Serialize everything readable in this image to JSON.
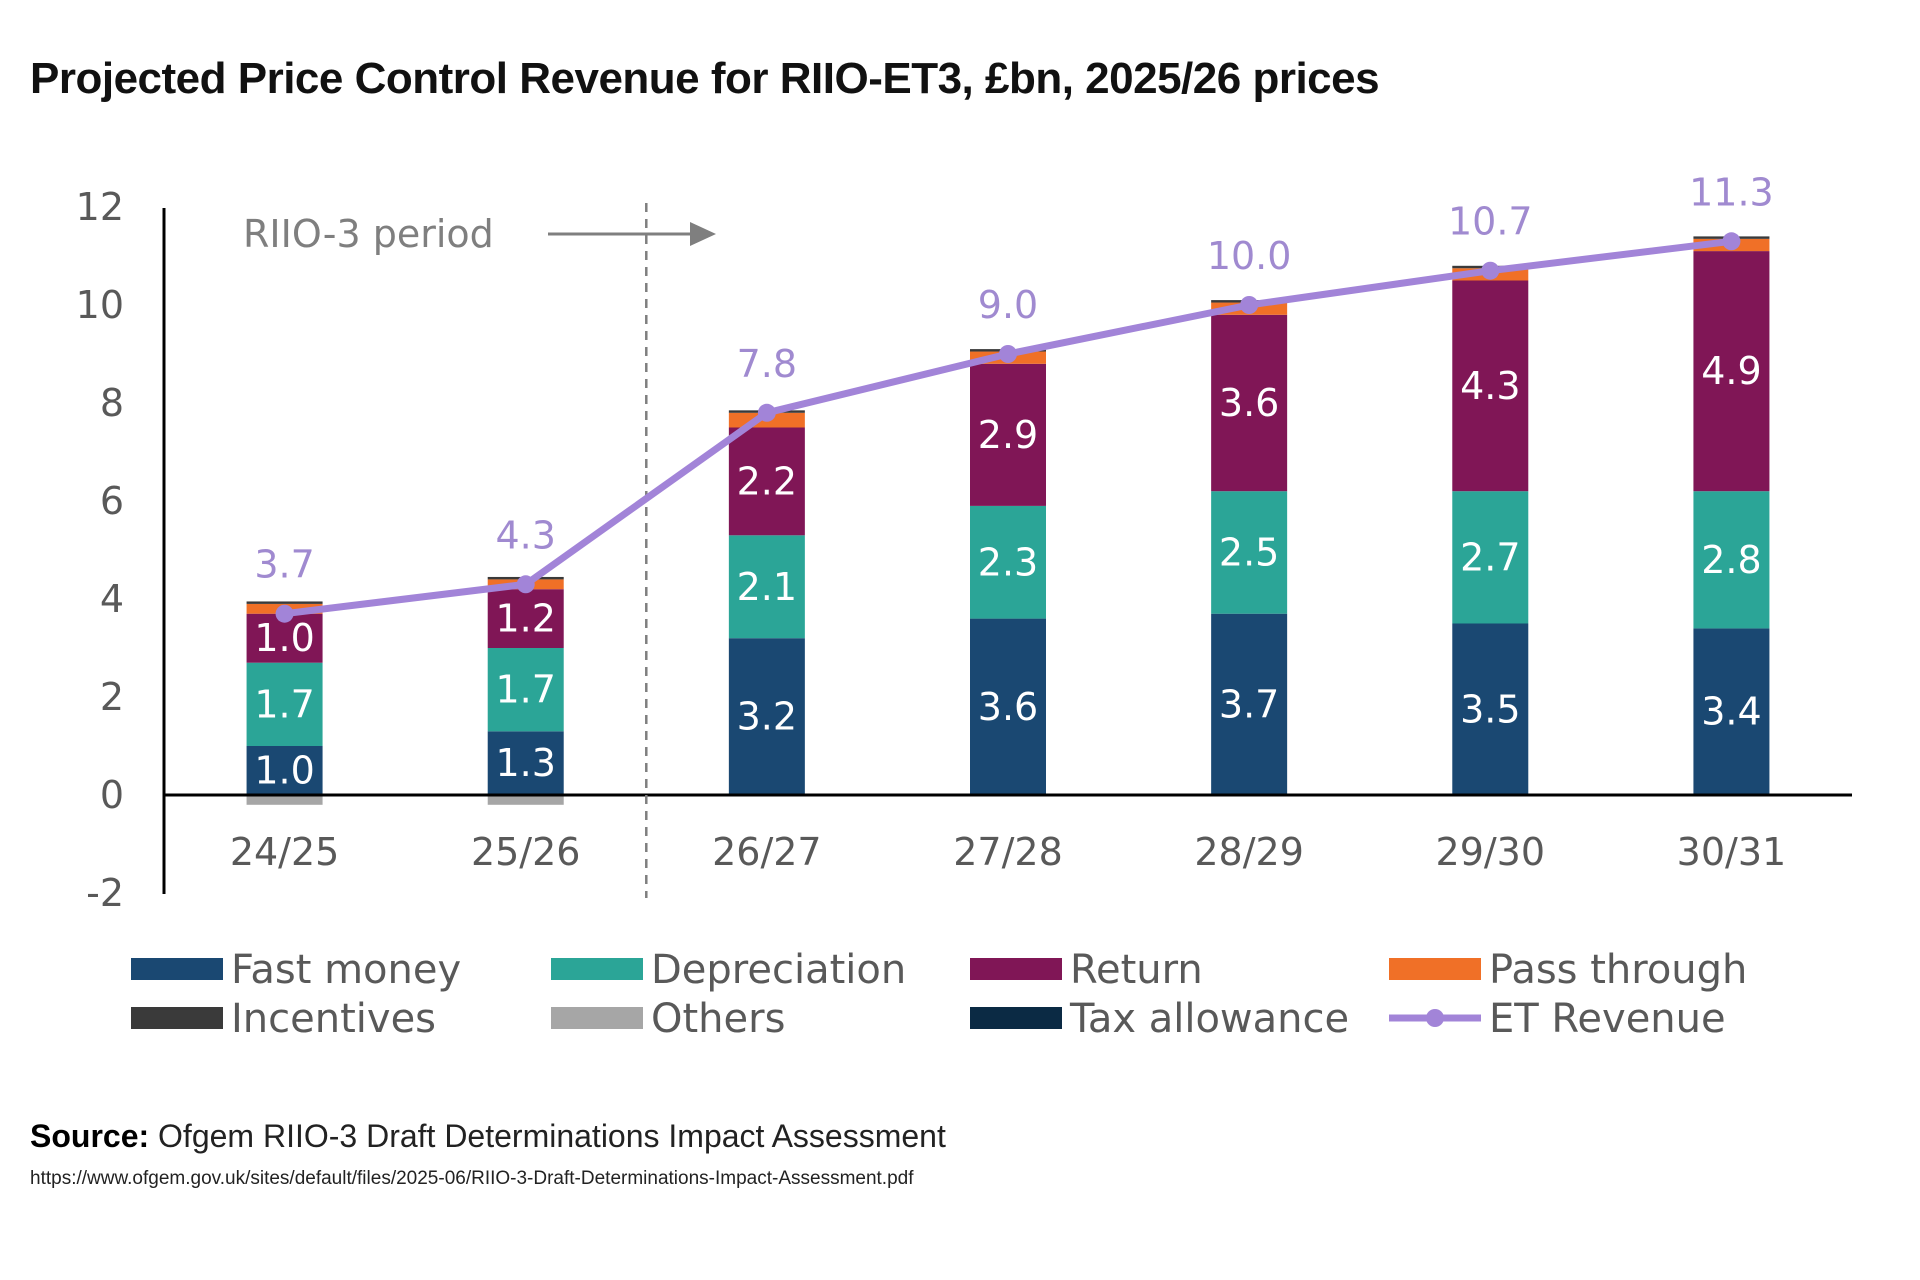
{
  "title": "Projected Price Control Revenue for RIIO-ET3, £bn, 2025/26 prices",
  "source": {
    "label": "Source:",
    "text": "Ofgem RIIO-3 Draft Determinations Impact Assessment",
    "url": "https://www.ofgem.gov.uk/sites/default/files/2025-06/RIIO-3-Draft-Determinations-Impact-Assessment.pdf"
  },
  "chart_data": {
    "type": "bar",
    "stacked": true,
    "title": "Projected Price Control Revenue for RIIO-ET3, £bn, 2025/26 prices",
    "xlabel": "",
    "ylabel": "",
    "ylim": [
      -2,
      12
    ],
    "yticks": [
      "-2",
      "0",
      "2",
      "4",
      "6",
      "8",
      "10",
      "12"
    ],
    "categories": [
      "24/25",
      "25/26",
      "26/27",
      "27/28",
      "28/29",
      "29/30",
      "30/31"
    ],
    "annotation": {
      "text": "RIIO-3 period",
      "after_category": "25/26"
    },
    "series": [
      {
        "name": "Fast money",
        "color": "#1a4872",
        "values": [
          1.0,
          1.3,
          3.2,
          3.6,
          3.7,
          3.5,
          3.4
        ],
        "labels": [
          "1.0",
          "1.3",
          "3.2",
          "3.6",
          "3.7",
          "3.5",
          "3.4"
        ]
      },
      {
        "name": "Depreciation",
        "color": "#2ba597",
        "values": [
          1.7,
          1.7,
          2.1,
          2.3,
          2.5,
          2.7,
          2.8
        ],
        "labels": [
          "1.7",
          "1.7",
          "2.1",
          "2.3",
          "2.5",
          "2.7",
          "2.8"
        ]
      },
      {
        "name": "Return",
        "color": "#801656",
        "values": [
          1.0,
          1.2,
          2.2,
          2.9,
          3.6,
          4.3,
          4.9
        ],
        "labels": [
          "1.0",
          "1.2",
          "2.2",
          "2.9",
          "3.6",
          "4.3",
          "4.9"
        ]
      },
      {
        "name": "Pass through",
        "color": "#f07027",
        "values": [
          0.2,
          0.2,
          0.3,
          0.25,
          0.25,
          0.25,
          0.25
        ]
      },
      {
        "name": "Incentives",
        "color": "#3a3a3a",
        "values": [
          0.05,
          0.05,
          0.05,
          0.05,
          0.05,
          0.05,
          0.05
        ]
      },
      {
        "name": "Others",
        "color": "#a6a6a6",
        "values": [
          -0.2,
          -0.2,
          0,
          0,
          0,
          0,
          0
        ]
      },
      {
        "name": "Tax allowance",
        "color": "#0b2a44",
        "values": [
          0,
          0,
          0,
          0,
          0,
          0,
          0
        ]
      }
    ],
    "line": {
      "name": "ET Revenue",
      "color": "#a284d8",
      "values": [
        3.7,
        4.3,
        7.8,
        9.0,
        10.0,
        10.7,
        11.3
      ],
      "labels": [
        "3.7",
        "4.3",
        "7.8",
        "9.0",
        "10.0",
        "10.7",
        "11.3"
      ]
    },
    "legend": [
      "Fast money",
      "Depreciation",
      "Return",
      "Pass through",
      "Incentives",
      "Others",
      "Tax allowance",
      "ET Revenue"
    ]
  }
}
